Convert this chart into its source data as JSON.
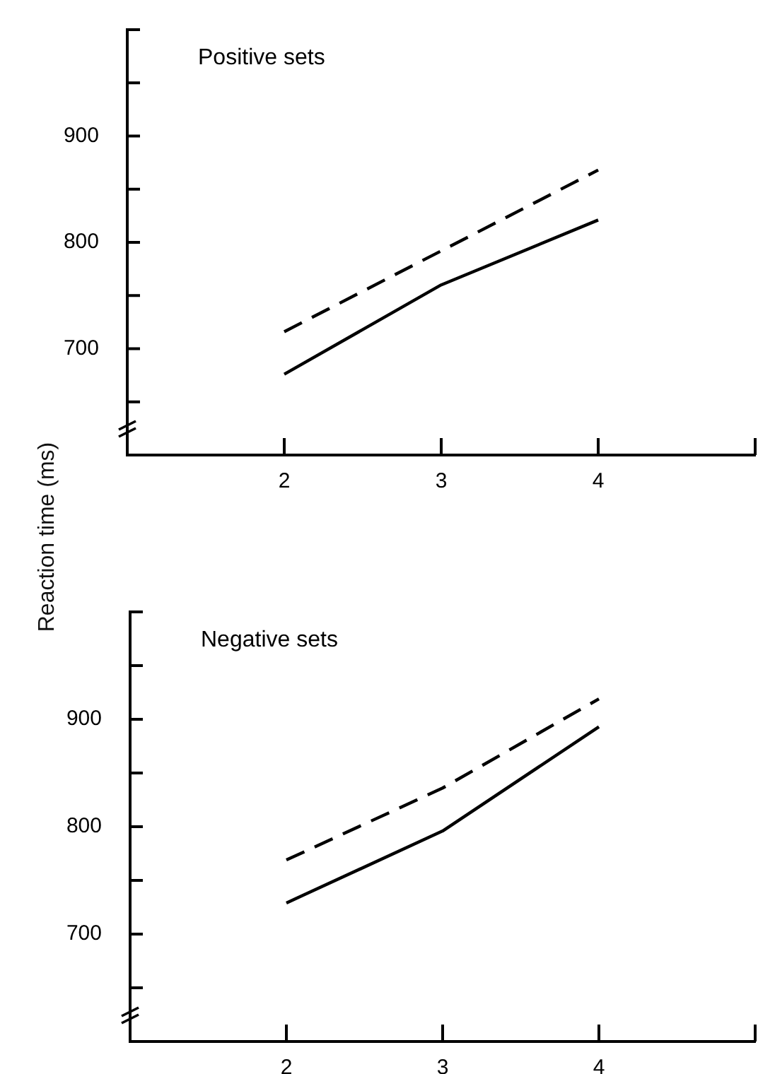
{
  "chart_data": [
    {
      "type": "line",
      "title": "Positive sets",
      "ylabel": "Reaction time (ms)",
      "x": [
        2,
        3,
        4
      ],
      "xlim": [
        1,
        5
      ],
      "xticks": [
        2,
        3,
        4,
        {
          "value": 5,
          "label": null
        }
      ],
      "ylim": [
        600,
        1000
      ],
      "yticks": [
        {
          "value": 650,
          "label": null
        },
        700,
        {
          "value": 750,
          "label": null
        },
        800,
        {
          "value": 850,
          "label": null
        },
        900,
        {
          "value": 950,
          "label": null
        },
        {
          "value": 1000,
          "label": null
        }
      ],
      "marker": "none",
      "series": [
        {
          "color": "#000000",
          "line_style": "dashed",
          "values": [
            716,
            792,
            868
          ]
        },
        {
          "color": "#000000",
          "line_style": "solid",
          "values": [
            676,
            760,
            821
          ]
        }
      ]
    },
    {
      "type": "line",
      "title": "Negative sets",
      "x": [
        2,
        3,
        4
      ],
      "xlim": [
        1,
        5
      ],
      "xticks": [
        2,
        3,
        4,
        {
          "value": 5,
          "label": null
        }
      ],
      "ylim": [
        600,
        1000
      ],
      "yticks": [
        {
          "value": 650,
          "label": null
        },
        700,
        {
          "value": 750,
          "label": null
        },
        800,
        {
          "value": 850,
          "label": null
        },
        900,
        {
          "value": 950,
          "label": null
        },
        {
          "value": 1000,
          "label": null
        }
      ],
      "marker": "none",
      "series": [
        {
          "color": "#000000",
          "line_style": "dashed",
          "values": [
            769,
            836,
            919
          ]
        },
        {
          "color": "#000000",
          "line_style": "solid",
          "values": [
            729,
            796,
            893
          ]
        }
      ]
    }
  ]
}
